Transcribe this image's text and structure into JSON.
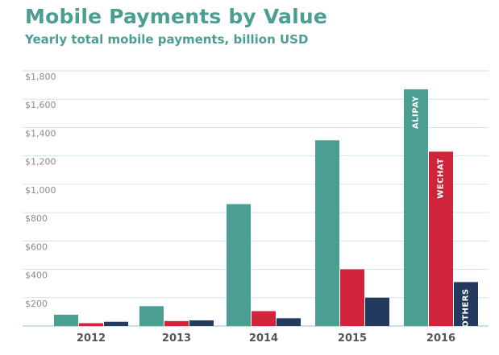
{
  "chart_data": {
    "type": "bar",
    "title": "Mobile Payments by Value",
    "subtitle": "Yearly total mobile payments, billion USD",
    "categories": [
      "2012",
      "2013",
      "2014",
      "2015",
      "2016"
    ],
    "series": [
      {
        "name": "ALIPAY",
        "color": "#4a9e92",
        "values": [
          80,
          140,
          860,
          1310,
          1670
        ]
      },
      {
        "name": "WECHAT",
        "color": "#d0243a",
        "values": [
          20,
          35,
          105,
          400,
          1230
        ]
      },
      {
        "name": "OTHERS",
        "color": "#23395d",
        "values": [
          30,
          40,
          55,
          200,
          310
        ]
      }
    ],
    "yticks": [
      "$0",
      "$200",
      "$400",
      "$600",
      "$800",
      "$1,000",
      "$1,200",
      "$1,400",
      "$1,600",
      "$1,800"
    ],
    "ylim": [
      0,
      1800
    ],
    "grid": true,
    "legend": "labels inside 2016 bars"
  }
}
